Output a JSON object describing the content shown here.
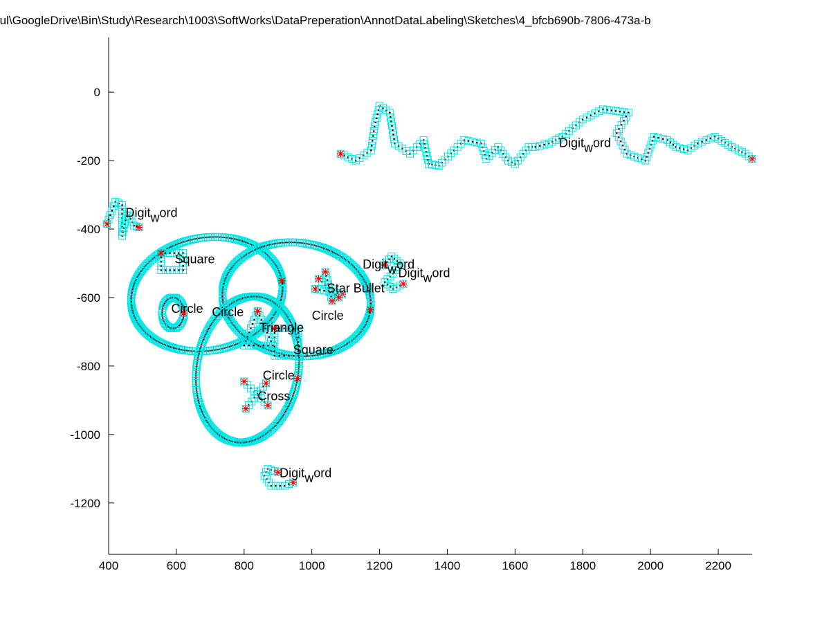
{
  "chart_data": {
    "type": "scatter",
    "title": "rul\\GoogleDrive\\Bin\\Study\\Research\\1003\\SoftWorks\\DataPreperation\\AnnotDataLabeling\\Sketches\\4_bfcb690b-7806-473a-b",
    "xlabel": "",
    "ylabel": "",
    "xlim": [
      400,
      2300
    ],
    "ylim": [
      -1350,
      160
    ],
    "xticks": [
      400,
      600,
      800,
      1000,
      1200,
      1400,
      1600,
      1800,
      2000,
      2200
    ],
    "yticks": [
      0,
      -200,
      -400,
      -600,
      -800,
      -1000,
      -1200
    ],
    "grid": false,
    "legend": "none",
    "colors": {
      "stroke_box": "#00e5e5",
      "stroke_point": "#000000",
      "endpoint": "#ff0000",
      "axis": "#000000"
    },
    "series": [
      {
        "label": "Circle",
        "kind": "ellipse",
        "center": [
          690,
          -590
        ],
        "radius": [
          225,
          165
        ],
        "rotation": 10
      },
      {
        "label": "Circle",
        "kind": "ellipse",
        "center": [
          955,
          -605
        ],
        "radius": [
          220,
          165
        ],
        "rotation": -8
      },
      {
        "label": "Circle",
        "kind": "ellipse",
        "center": [
          810,
          -810
        ],
        "radius": [
          150,
          215
        ],
        "rotation": -10
      },
      {
        "label": "Circle",
        "kind": "ellipse",
        "center": [
          590,
          -645
        ],
        "radius": [
          32,
          45
        ],
        "rotation": 0
      },
      {
        "label": "Square",
        "kind": "rect",
        "corners": [
          [
            555,
            -470
          ],
          [
            620,
            -470
          ],
          [
            620,
            -520
          ],
          [
            555,
            -520
          ]
        ]
      },
      {
        "label": "Square",
        "kind": "rect",
        "corners": [
          [
            890,
            -690
          ],
          [
            960,
            -690
          ],
          [
            960,
            -770
          ],
          [
            890,
            -770
          ]
        ]
      },
      {
        "label": "Triangle",
        "kind": "polyline",
        "points": [
          [
            840,
            -640
          ],
          [
            800,
            -740
          ],
          [
            885,
            -740
          ],
          [
            840,
            -640
          ]
        ]
      },
      {
        "label": "Cross",
        "kind": "strokes",
        "strokes": [
          [
            [
              800,
              -845
            ],
            [
              870,
              -915
            ]
          ],
          [
            [
              865,
              -850
            ],
            [
              805,
              -925
            ]
          ]
        ]
      },
      {
        "label": "Star Bullet",
        "kind": "strokes",
        "strokes": [
          [
            [
              1010,
              -575
            ],
            [
              1090,
              -590
            ]
          ],
          [
            [
              1040,
              -525
            ],
            [
              1060,
              -610
            ]
          ],
          [
            [
              1020,
              -545
            ],
            [
              1080,
              -600
            ]
          ]
        ]
      },
      {
        "label": "Digit_word",
        "kind": "polyline",
        "points": [
          [
            395,
            -385
          ],
          [
            420,
            -320
          ],
          [
            440,
            -330
          ],
          [
            440,
            -420
          ],
          [
            455,
            -350
          ],
          [
            475,
            -390
          ],
          [
            490,
            -395
          ]
        ]
      },
      {
        "label": "Digit_word",
        "kind": "polyline",
        "points": [
          [
            1215,
            -505
          ],
          [
            1235,
            -480
          ],
          [
            1260,
            -500
          ],
          [
            1240,
            -530
          ],
          [
            1215,
            -555
          ],
          [
            1240,
            -575
          ],
          [
            1270,
            -560
          ]
        ]
      },
      {
        "label": "Digit_word",
        "kind": "polyline",
        "points": [
          [
            900,
            -1110
          ],
          [
            870,
            -1100
          ],
          [
            860,
            -1120
          ],
          [
            880,
            -1150
          ],
          [
            920,
            -1150
          ],
          [
            945,
            -1140
          ]
        ]
      },
      {
        "label": "Digit_word",
        "kind": "polyline",
        "points": [
          [
            1085,
            -180
          ],
          [
            1130,
            -200
          ],
          [
            1175,
            -170
          ],
          [
            1185,
            -100
          ],
          [
            1200,
            -40
          ],
          [
            1230,
            -60
          ],
          [
            1245,
            -150
          ],
          [
            1290,
            -180
          ],
          [
            1330,
            -140
          ],
          [
            1345,
            -210
          ],
          [
            1375,
            -215
          ],
          [
            1420,
            -170
          ],
          [
            1450,
            -140
          ],
          [
            1500,
            -150
          ],
          [
            1515,
            -195
          ],
          [
            1550,
            -160
          ],
          [
            1580,
            -200
          ],
          [
            1600,
            -210
          ],
          [
            1640,
            -160
          ],
          [
            1660,
            -160
          ],
          [
            1700,
            -150
          ],
          [
            1740,
            -130
          ],
          [
            1800,
            -80
          ],
          [
            1860,
            -50
          ],
          [
            1935,
            -60
          ],
          [
            1900,
            -120
          ],
          [
            1930,
            -180
          ],
          [
            1985,
            -200
          ],
          [
            2010,
            -130
          ],
          [
            2050,
            -140
          ],
          [
            2075,
            -160
          ],
          [
            2110,
            -170
          ],
          [
            2140,
            -150
          ],
          [
            2190,
            -130
          ],
          [
            2240,
            -160
          ],
          [
            2280,
            -180
          ],
          [
            2300,
            -195
          ]
        ]
      }
    ],
    "annotations": [
      {
        "text": "Digit",
        "sub": "w",
        "rest": "ord",
        "x": 450,
        "y": -365
      },
      {
        "text": "Square",
        "x": 595,
        "y": -500
      },
      {
        "text": "Circle",
        "x": 585,
        "y": -645
      },
      {
        "text": "Circle",
        "x": 705,
        "y": -655
      },
      {
        "text": "Star Bullet",
        "x": 1045,
        "y": -585
      },
      {
        "text": "Digit",
        "sub": "w",
        "rest": "ord",
        "x": 1150,
        "y": -515
      },
      {
        "text": "Digit",
        "sub": "w",
        "rest": "ord",
        "x": 1255,
        "y": -540
      },
      {
        "text": "Circle",
        "x": 1000,
        "y": -665
      },
      {
        "text": "Triangle",
        "x": 845,
        "y": -700
      },
      {
        "text": "Square",
        "x": 945,
        "y": -765
      },
      {
        "text": "Circle",
        "x": 855,
        "y": -840
      },
      {
        "text": "Cross",
        "x": 840,
        "y": -900
      },
      {
        "text": "Digit",
        "sub": "w",
        "rest": "ord",
        "x": 1730,
        "y": -160
      },
      {
        "text": "Digit",
        "sub": "w",
        "rest": "ord",
        "x": 905,
        "y": -1125
      }
    ]
  }
}
